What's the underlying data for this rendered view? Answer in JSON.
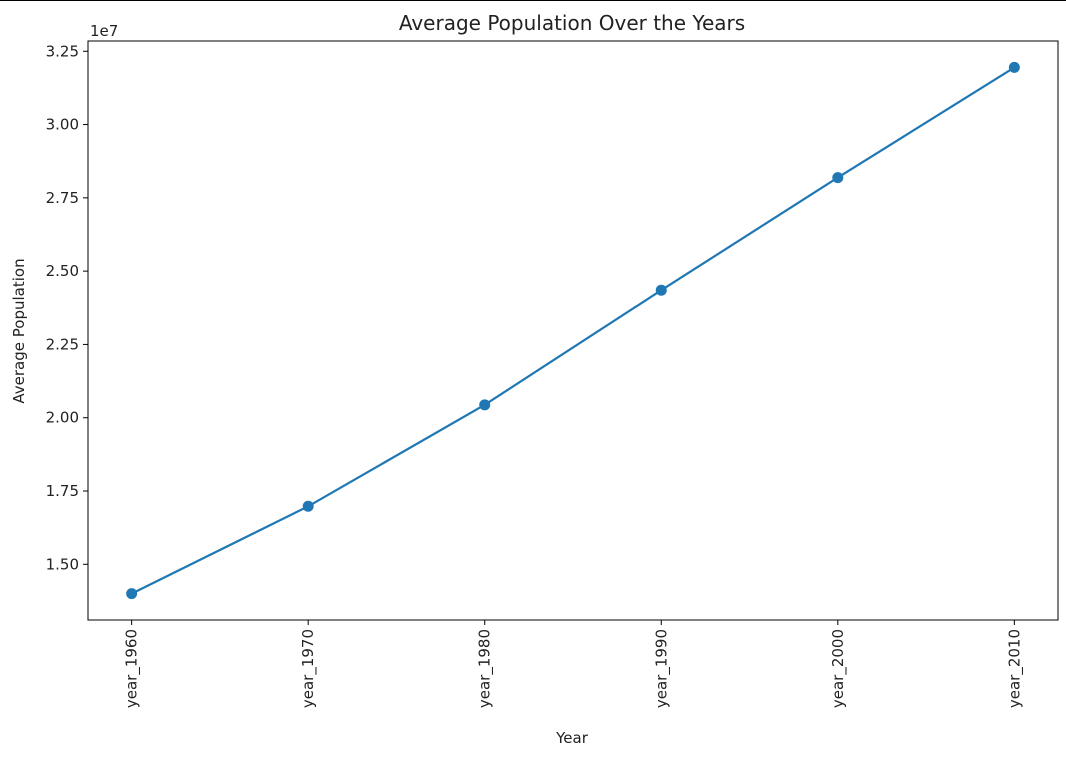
{
  "chart_data": {
    "type": "line",
    "title": "Average Population Over the Years",
    "xlabel": "Year",
    "ylabel": "Average Population",
    "offset_label": "1e7",
    "categories": [
      "year_1960",
      "year_1970",
      "year_1980",
      "year_1990",
      "year_2000",
      "year_2010"
    ],
    "values": [
      14.0,
      16.98,
      20.44,
      24.35,
      28.19,
      31.95
    ],
    "value_scale": "1e7",
    "yticks": [
      "1.50",
      "1.75",
      "2.00",
      "2.25",
      "2.50",
      "2.75",
      "3.00",
      "3.25"
    ],
    "ylim": [
      13.1,
      32.85
    ],
    "grid": false,
    "marker": "circle",
    "color": "#1f77b4"
  }
}
